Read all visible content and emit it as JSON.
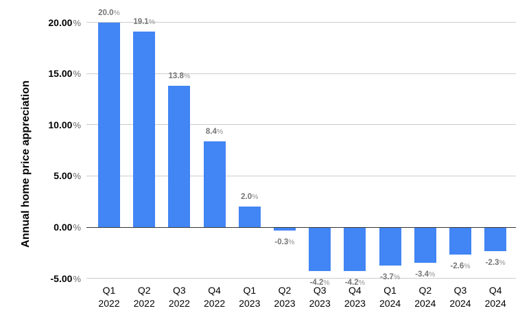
{
  "chart_data": {
    "type": "bar",
    "title": "",
    "ylabel": "Annual home price appreciation",
    "xlabel": "",
    "legend": "none",
    "grid": true,
    "categories": [
      {
        "quarter": "Q1",
        "year": "2022"
      },
      {
        "quarter": "Q2",
        "year": "2022"
      },
      {
        "quarter": "Q3",
        "year": "2022"
      },
      {
        "quarter": "Q4",
        "year": "2022"
      },
      {
        "quarter": "Q1",
        "year": "2023"
      },
      {
        "quarter": "Q2",
        "year": "2023"
      },
      {
        "quarter": "Q3",
        "year": "2023"
      },
      {
        "quarter": "Q4",
        "year": "2023"
      },
      {
        "quarter": "Q1",
        "year": "2024"
      },
      {
        "quarter": "Q2",
        "year": "2024"
      },
      {
        "quarter": "Q3",
        "year": "2024"
      },
      {
        "quarter": "Q4",
        "year": "2024"
      }
    ],
    "values": [
      20.0,
      19.1,
      13.8,
      8.4,
      2.0,
      -0.3,
      -4.2,
      -4.2,
      -3.7,
      -3.4,
      -2.6,
      -2.3
    ],
    "data_labels": [
      "20.0%",
      "19.1%",
      "13.8%",
      "8.4%",
      "2.0%",
      "-0.3%",
      "-4.2%",
      "-4.2%",
      "-3.7%",
      "-3.4%",
      "-2.6%",
      "-2.3%"
    ],
    "y_axis": {
      "range": [
        -5,
        20
      ],
      "ticks": [
        {
          "value": 20,
          "label": "20.00%"
        },
        {
          "value": 15,
          "label": "15.00%"
        },
        {
          "value": 10,
          "label": "10.00%"
        },
        {
          "value": 5,
          "label": "5.00%"
        },
        {
          "value": 0,
          "label": "0.00%"
        },
        {
          "value": -5,
          "label": "-5.00%"
        }
      ]
    },
    "colors": {
      "bar": "#4285F4",
      "gridline": "#cccccc",
      "zero_line": "#333333",
      "data_label": "#757575",
      "y_tick_label": "#000000",
      "x_tick_label": "#000000"
    }
  }
}
